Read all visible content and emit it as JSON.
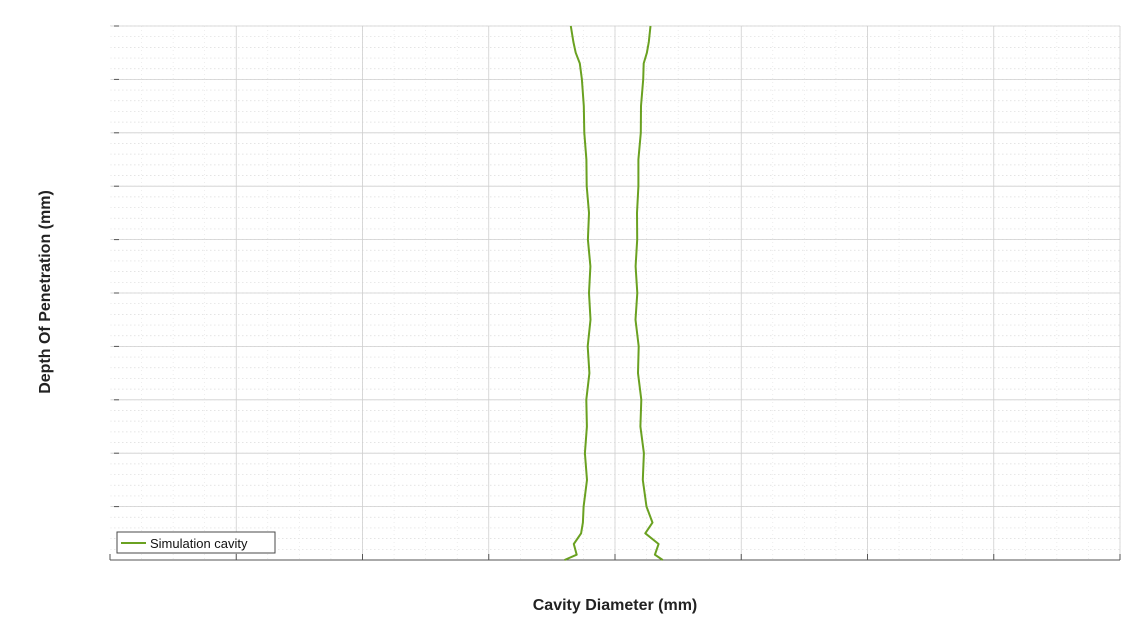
{
  "chart_data": {
    "type": "line",
    "title": "",
    "xlabel": "Cavity Diameter (mm)",
    "ylabel": "Depth Of Penetration (mm)",
    "xlim": [
      -4,
      4
    ],
    "ylim": [
      0,
      10
    ],
    "x_major_ticks": [
      -4,
      -3,
      -2,
      -1,
      0,
      1,
      2,
      3,
      4
    ],
    "y_major_ticks": [
      0,
      1,
      2,
      3,
      4,
      5,
      6,
      7,
      8,
      9,
      10
    ],
    "tick_labels_visible": false,
    "grid": "on",
    "minor_grid": "on",
    "legend": {
      "location": "bottom-left",
      "entries": [
        "Simulation cavity"
      ]
    },
    "series": [
      {
        "name": "Simulation cavity",
        "color": "#6aa121",
        "left_wall": [
          [
            -0.35,
            10.0
          ],
          [
            -0.33,
            9.7
          ],
          [
            -0.31,
            9.5
          ],
          [
            -0.28,
            9.3
          ],
          [
            -0.26,
            9.0
          ],
          [
            -0.25,
            8.5
          ],
          [
            -0.24,
            8.0
          ],
          [
            -0.23,
            7.5
          ],
          [
            -0.22,
            7.0
          ],
          [
            -0.21,
            6.5
          ],
          [
            -0.21,
            6.0
          ],
          [
            -0.2,
            5.5
          ],
          [
            -0.2,
            5.0
          ],
          [
            -0.2,
            4.5
          ],
          [
            -0.21,
            4.0
          ],
          [
            -0.21,
            3.5
          ],
          [
            -0.22,
            3.0
          ],
          [
            -0.23,
            2.5
          ],
          [
            -0.23,
            2.0
          ],
          [
            -0.23,
            1.5
          ],
          [
            -0.24,
            1.0
          ],
          [
            -0.26,
            0.7
          ],
          [
            -0.28,
            0.5
          ],
          [
            -0.3,
            0.3
          ],
          [
            -0.34,
            0.1
          ],
          [
            -0.36,
            0.0
          ]
        ],
        "right_wall": [
          [
            0.28,
            10.0
          ],
          [
            0.27,
            9.7
          ],
          [
            0.25,
            9.5
          ],
          [
            0.23,
            9.3
          ],
          [
            0.22,
            9.0
          ],
          [
            0.21,
            8.5
          ],
          [
            0.2,
            8.0
          ],
          [
            0.19,
            7.5
          ],
          [
            0.18,
            7.0
          ],
          [
            0.18,
            6.5
          ],
          [
            0.17,
            6.0
          ],
          [
            0.17,
            5.5
          ],
          [
            0.17,
            5.0
          ],
          [
            0.17,
            4.5
          ],
          [
            0.18,
            4.0
          ],
          [
            0.19,
            3.5
          ],
          [
            0.2,
            3.0
          ],
          [
            0.21,
            2.5
          ],
          [
            0.22,
            2.0
          ],
          [
            0.23,
            1.5
          ],
          [
            0.24,
            1.0
          ],
          [
            0.26,
            0.7
          ],
          [
            0.28,
            0.5
          ],
          [
            0.31,
            0.3
          ],
          [
            0.34,
            0.1
          ],
          [
            0.37,
            0.0
          ]
        ]
      }
    ]
  }
}
